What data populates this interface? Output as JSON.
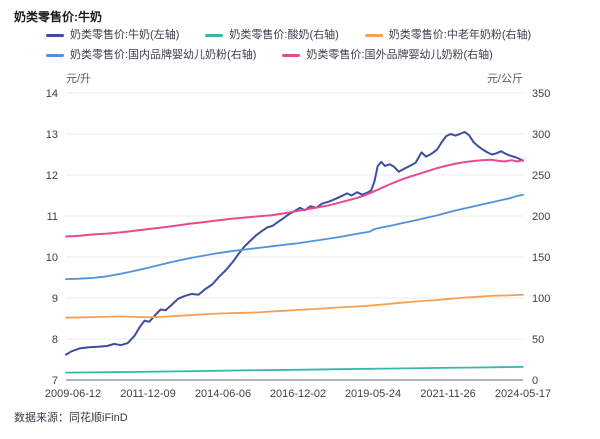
{
  "title": "奶类零售价:牛奶",
  "source": "数据来源：同花顺iFinD",
  "axes": {
    "left_unit": "元/升",
    "right_unit": "元/公斤",
    "left_ticks": [
      14,
      13,
      12,
      11,
      10,
      9,
      8,
      7
    ],
    "right_ticks": [
      350,
      300,
      250,
      200,
      150,
      100,
      50,
      0
    ],
    "x_ticks": [
      "2009-06-12",
      "2011-12-09",
      "2014-06-06",
      "2016-12-02",
      "2019-05-24",
      "2021-11-26",
      "2024-05-17"
    ]
  },
  "colors": {
    "grid": "#ededf3",
    "axis_line": "#aeb2bc",
    "tick_text": "#404040"
  },
  "chart_data": {
    "type": "line",
    "title": "奶类零售价:牛奶",
    "x_tick_labels": [
      "2009-06-12",
      "2011-12-09",
      "2014-06-06",
      "2016-12-02",
      "2019-05-24",
      "2021-11-26",
      "2024-05-17"
    ],
    "left_axis": {
      "unit": "元/升",
      "min": 7,
      "max": 14
    },
    "right_axis": {
      "unit": "元/公斤",
      "min": 0,
      "max": 350
    },
    "grid": "horizontal",
    "legend_position": "top",
    "series": [
      {
        "name": "奶类零售价:牛奶(左轴)",
        "axis": "left",
        "color": "#3e4e9e",
        "width": 2,
        "points": [
          [
            0,
            7.62
          ],
          [
            0.012,
            7.7
          ],
          [
            0.03,
            7.77
          ],
          [
            0.05,
            7.8
          ],
          [
            0.07,
            7.81
          ],
          [
            0.09,
            7.83
          ],
          [
            0.105,
            7.88
          ],
          [
            0.12,
            7.85
          ],
          [
            0.135,
            7.9
          ],
          [
            0.15,
            8.08
          ],
          [
            0.162,
            8.3
          ],
          [
            0.172,
            8.45
          ],
          [
            0.182,
            8.42
          ],
          [
            0.195,
            8.58
          ],
          [
            0.207,
            8.72
          ],
          [
            0.218,
            8.7
          ],
          [
            0.23,
            8.82
          ],
          [
            0.245,
            8.98
          ],
          [
            0.26,
            9.05
          ],
          [
            0.275,
            9.1
          ],
          [
            0.29,
            9.08
          ],
          [
            0.305,
            9.22
          ],
          [
            0.32,
            9.33
          ],
          [
            0.335,
            9.52
          ],
          [
            0.35,
            9.68
          ],
          [
            0.365,
            9.88
          ],
          [
            0.378,
            10.08
          ],
          [
            0.39,
            10.25
          ],
          [
            0.402,
            10.38
          ],
          [
            0.415,
            10.52
          ],
          [
            0.428,
            10.63
          ],
          [
            0.44,
            10.72
          ],
          [
            0.452,
            10.76
          ],
          [
            0.462,
            10.84
          ],
          [
            0.475,
            10.94
          ],
          [
            0.487,
            11.04
          ],
          [
            0.5,
            11.12
          ],
          [
            0.512,
            11.2
          ],
          [
            0.522,
            11.14
          ],
          [
            0.535,
            11.24
          ],
          [
            0.548,
            11.2
          ],
          [
            0.56,
            11.3
          ],
          [
            0.575,
            11.35
          ],
          [
            0.59,
            11.42
          ],
          [
            0.602,
            11.48
          ],
          [
            0.615,
            11.55
          ],
          [
            0.625,
            11.5
          ],
          [
            0.637,
            11.58
          ],
          [
            0.648,
            11.52
          ],
          [
            0.66,
            11.57
          ],
          [
            0.668,
            11.63
          ],
          [
            0.675,
            11.85
          ],
          [
            0.682,
            12.22
          ],
          [
            0.69,
            12.32
          ],
          [
            0.698,
            12.22
          ],
          [
            0.708,
            12.26
          ],
          [
            0.718,
            12.2
          ],
          [
            0.728,
            12.08
          ],
          [
            0.74,
            12.15
          ],
          [
            0.752,
            12.22
          ],
          [
            0.765,
            12.3
          ],
          [
            0.778,
            12.55
          ],
          [
            0.788,
            12.45
          ],
          [
            0.8,
            12.52
          ],
          [
            0.812,
            12.62
          ],
          [
            0.822,
            12.8
          ],
          [
            0.832,
            12.95
          ],
          [
            0.842,
            13.0
          ],
          [
            0.852,
            12.96
          ],
          [
            0.862,
            13.0
          ],
          [
            0.872,
            13.05
          ],
          [
            0.882,
            12.97
          ],
          [
            0.892,
            12.8
          ],
          [
            0.902,
            12.7
          ],
          [
            0.912,
            12.62
          ],
          [
            0.922,
            12.55
          ],
          [
            0.932,
            12.5
          ],
          [
            0.942,
            12.53
          ],
          [
            0.952,
            12.58
          ],
          [
            0.962,
            12.52
          ],
          [
            0.972,
            12.47
          ],
          [
            0.982,
            12.44
          ],
          [
            0.991,
            12.4
          ],
          [
            1,
            12.35
          ]
        ]
      },
      {
        "name": "奶类零售价:酸奶(右轴)",
        "axis": "right",
        "color": "#35b8ab",
        "width": 1.8,
        "points": [
          [
            0,
            9
          ],
          [
            0.1,
            9.5
          ],
          [
            0.2,
            10.3
          ],
          [
            0.3,
            11
          ],
          [
            0.4,
            11.8
          ],
          [
            0.5,
            12.5
          ],
          [
            0.6,
            13.2
          ],
          [
            0.7,
            13.9
          ],
          [
            0.8,
            14.6
          ],
          [
            0.9,
            15.3
          ],
          [
            1,
            16
          ]
        ]
      },
      {
        "name": "奶类零售价:中老年奶粉(右轴)",
        "axis": "right",
        "color": "#f6a054",
        "width": 1.8,
        "points": [
          [
            0,
            76
          ],
          [
            0.04,
            76.5
          ],
          [
            0.08,
            77
          ],
          [
            0.12,
            77.5
          ],
          [
            0.15,
            77
          ],
          [
            0.18,
            76.5
          ],
          [
            0.21,
            77
          ],
          [
            0.24,
            78
          ],
          [
            0.27,
            79
          ],
          [
            0.3,
            80
          ],
          [
            0.33,
            81
          ],
          [
            0.36,
            81.5
          ],
          [
            0.39,
            82
          ],
          [
            0.42,
            82.5
          ],
          [
            0.45,
            83.5
          ],
          [
            0.48,
            84.5
          ],
          [
            0.51,
            85.5
          ],
          [
            0.54,
            86.5
          ],
          [
            0.57,
            87.5
          ],
          [
            0.6,
            88.5
          ],
          [
            0.63,
            89.5
          ],
          [
            0.66,
            90.5
          ],
          [
            0.69,
            92
          ],
          [
            0.72,
            93.5
          ],
          [
            0.75,
            95
          ],
          [
            0.78,
            96.5
          ],
          [
            0.81,
            97.5
          ],
          [
            0.84,
            99
          ],
          [
            0.87,
            100.5
          ],
          [
            0.9,
            101.5
          ],
          [
            0.93,
            102.5
          ],
          [
            0.96,
            103
          ],
          [
            0.98,
            103.5
          ],
          [
            1,
            104
          ]
        ]
      },
      {
        "name": "奶类零售价:国内品牌婴幼儿奶粉(右轴)",
        "axis": "right",
        "color": "#4e93da",
        "width": 1.8,
        "points": [
          [
            0,
            123
          ],
          [
            0.03,
            123.5
          ],
          [
            0.06,
            124.5
          ],
          [
            0.09,
            126.5
          ],
          [
            0.12,
            129.5
          ],
          [
            0.15,
            133
          ],
          [
            0.18,
            137
          ],
          [
            0.21,
            141
          ],
          [
            0.24,
            145
          ],
          [
            0.27,
            148.5
          ],
          [
            0.3,
            151.5
          ],
          [
            0.33,
            154.5
          ],
          [
            0.36,
            157
          ],
          [
            0.39,
            159
          ],
          [
            0.42,
            161
          ],
          [
            0.45,
            163
          ],
          [
            0.48,
            165
          ],
          [
            0.51,
            167
          ],
          [
            0.54,
            169.5
          ],
          [
            0.57,
            172
          ],
          [
            0.6,
            174.5
          ],
          [
            0.63,
            177.5
          ],
          [
            0.65,
            179.5
          ],
          [
            0.665,
            181
          ],
          [
            0.675,
            184
          ],
          [
            0.69,
            186
          ],
          [
            0.71,
            188
          ],
          [
            0.73,
            190.5
          ],
          [
            0.75,
            193
          ],
          [
            0.77,
            195.5
          ],
          [
            0.79,
            198
          ],
          [
            0.81,
            200.5
          ],
          [
            0.83,
            203.5
          ],
          [
            0.85,
            206.5
          ],
          [
            0.87,
            209
          ],
          [
            0.89,
            211.5
          ],
          [
            0.91,
            214
          ],
          [
            0.93,
            216.5
          ],
          [
            0.95,
            219
          ],
          [
            0.97,
            221.5
          ],
          [
            0.985,
            224
          ],
          [
            1,
            226
          ]
        ]
      },
      {
        "name": "奶类零售价:国外品牌婴幼儿奶粉(右轴)",
        "axis": "right",
        "color": "#e84a8d",
        "width": 2,
        "points": [
          [
            0,
            175
          ],
          [
            0.03,
            176
          ],
          [
            0.06,
            177.5
          ],
          [
            0.09,
            178.5
          ],
          [
            0.12,
            180
          ],
          [
            0.15,
            182
          ],
          [
            0.18,
            184
          ],
          [
            0.21,
            186
          ],
          [
            0.24,
            188
          ],
          [
            0.27,
            190.5
          ],
          [
            0.3,
            192.5
          ],
          [
            0.33,
            194.5
          ],
          [
            0.36,
            196.5
          ],
          [
            0.39,
            198
          ],
          [
            0.42,
            199.5
          ],
          [
            0.45,
            201
          ],
          [
            0.47,
            202.5
          ],
          [
            0.49,
            204.5
          ],
          [
            0.51,
            206.5
          ],
          [
            0.53,
            208.5
          ],
          [
            0.55,
            210.5
          ],
          [
            0.57,
            212.5
          ],
          [
            0.59,
            215
          ],
          [
            0.61,
            218
          ],
          [
            0.63,
            221
          ],
          [
            0.65,
            224.5
          ],
          [
            0.67,
            229
          ],
          [
            0.69,
            234
          ],
          [
            0.71,
            239
          ],
          [
            0.73,
            243.5
          ],
          [
            0.75,
            247.5
          ],
          [
            0.77,
            251
          ],
          [
            0.79,
            254.5
          ],
          [
            0.81,
            258
          ],
          [
            0.83,
            261
          ],
          [
            0.85,
            263.5
          ],
          [
            0.87,
            265.5
          ],
          [
            0.89,
            267
          ],
          [
            0.91,
            268
          ],
          [
            0.93,
            268.5
          ],
          [
            0.945,
            267.5
          ],
          [
            0.96,
            266.5
          ],
          [
            0.975,
            268
          ],
          [
            0.988,
            266.5
          ],
          [
            1,
            268
          ]
        ]
      }
    ]
  }
}
